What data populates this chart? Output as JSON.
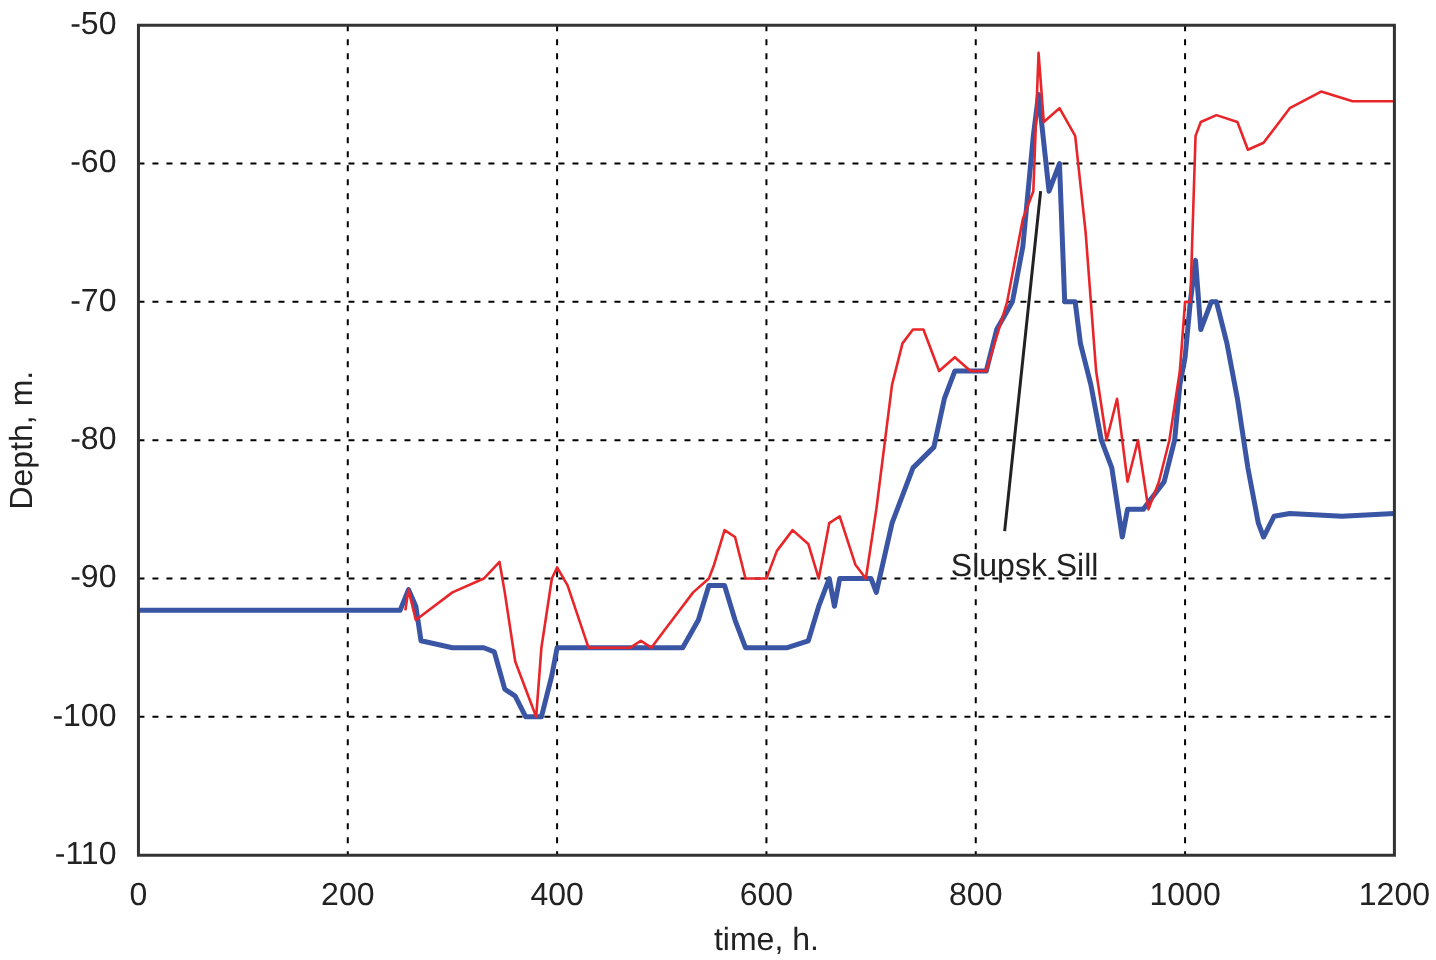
{
  "chart_data": {
    "type": "line",
    "xlabel": "time, h.",
    "ylabel": "Depth, m.",
    "xlim": [
      0,
      1200
    ],
    "xticks": [
      0,
      200,
      400,
      600,
      800,
      1000,
      1200
    ],
    "ylim": [
      -110,
      -50
    ],
    "yticks": [
      -110,
      -100,
      -90,
      -80,
      -70,
      -60,
      -50
    ],
    "grid": true,
    "legend": false,
    "line_style": "solid",
    "marker": "none",
    "series": [
      {
        "color": "#e8262a",
        "x": [
          255,
          258,
          265,
          300,
          330,
          345,
          350,
          360,
          375,
          380,
          385,
          395,
          400,
          410,
          430,
          470,
          480,
          490,
          510,
          530,
          545,
          550,
          560,
          570,
          580,
          600,
          610,
          625,
          640,
          650,
          660,
          670,
          685,
          695,
          705,
          720,
          730,
          740,
          750,
          765,
          780,
          795,
          810,
          830,
          845,
          855,
          860,
          865,
          880,
          895,
          905,
          915,
          925,
          935,
          945,
          955,
          965,
          975,
          985,
          995,
          1000,
          1005,
          1010,
          1015,
          1030,
          1050,
          1060,
          1075,
          1100,
          1130,
          1160,
          1200
        ],
        "values": [
          -92.3,
          -90.8,
          -93,
          -91,
          -90,
          -88.8,
          -91,
          -96,
          -99,
          -100,
          -95,
          -90,
          -89.2,
          -90.5,
          -95,
          -95,
          -94.5,
          -95,
          -93,
          -91,
          -90,
          -89,
          -86.5,
          -87,
          -90,
          -90,
          -88,
          -86.5,
          -87.5,
          -90,
          -86,
          -85.5,
          -89,
          -90,
          -85,
          -76,
          -73,
          -72,
          -72,
          -75,
          -74,
          -75,
          -75,
          -70,
          -64,
          -62,
          -52,
          -57,
          -56,
          -58,
          -65,
          -75,
          -80,
          -77,
          -83,
          -80,
          -85,
          -83,
          -80,
          -75,
          -70,
          -70,
          -58,
          -57,
          -56.5,
          -57,
          -59,
          -58.5,
          -56,
          -54.8,
          -55.5,
          -55.5
        ]
      },
      {
        "color": "#3a55a4",
        "x": [
          0,
          250,
          258,
          265,
          270,
          300,
          330,
          340,
          350,
          360,
          370,
          385,
          395,
          400,
          450,
          500,
          520,
          535,
          545,
          560,
          570,
          580,
          620,
          640,
          650,
          660,
          665,
          670,
          700,
          705,
          720,
          740,
          760,
          770,
          780,
          810,
          820,
          835,
          845,
          855,
          860,
          870,
          880,
          885,
          895,
          900,
          910,
          920,
          930,
          940,
          945,
          960,
          970,
          980,
          990,
          995,
          1000,
          1005,
          1010,
          1015,
          1025,
          1030,
          1040,
          1050,
          1060,
          1070,
          1075,
          1085,
          1100,
          1150,
          1200
        ],
        "values": [
          -92.3,
          -92.3,
          -90.8,
          -92,
          -94.5,
          -95,
          -95,
          -95.3,
          -98,
          -98.5,
          -100,
          -100,
          -97,
          -95,
          -95,
          -95,
          -95,
          -93,
          -90.5,
          -90.5,
          -93,
          -95,
          -95,
          -94.5,
          -92,
          -90,
          -92,
          -90,
          -90,
          -91,
          -86,
          -82,
          -80.5,
          -77,
          -75,
          -75,
          -72,
          -70,
          -66,
          -58,
          -55,
          -62,
          -60,
          -70,
          -70,
          -73,
          -76,
          -80,
          -82,
          -87,
          -85,
          -85,
          -84,
          -83,
          -80,
          -76,
          -74,
          -70,
          -67,
          -72,
          -70,
          -70,
          -73,
          -77,
          -82,
          -86,
          -87,
          -85.5,
          -85.3,
          -85.5,
          -85.3
        ]
      }
    ],
    "annotations": [
      {
        "text": "Slupsk Sill",
        "x": 862,
        "y": -62
      }
    ]
  }
}
